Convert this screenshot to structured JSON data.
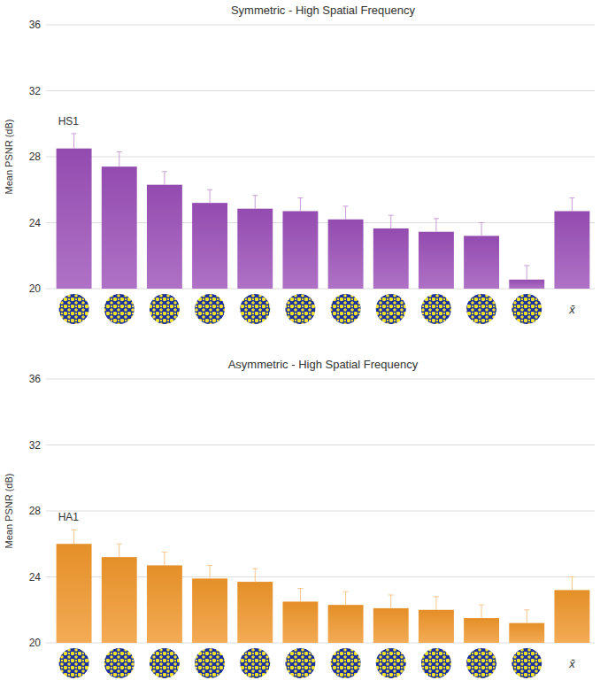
{
  "chart_data": [
    {
      "type": "bar",
      "title": "Symmetric - High Spatial Frequency",
      "y_label": "Mean PSNR (dB)",
      "annotation": "HS1",
      "categories": [
        null,
        null,
        null,
        null,
        null,
        null,
        null,
        null,
        null,
        null,
        null,
        "x̄"
      ],
      "values": [
        28.5,
        27.4,
        26.3,
        25.2,
        24.85,
        24.7,
        24.2,
        23.65,
        23.45,
        23.2,
        20.55,
        24.7
      ],
      "errors": [
        0.9,
        0.9,
        0.8,
        0.8,
        0.8,
        0.8,
        0.8,
        0.8,
        0.8,
        0.8,
        0.85,
        0.8
      ],
      "color": "#9b4fb8",
      "ylim": [
        20,
        36
      ],
      "yticks": [
        20,
        24,
        28,
        32,
        36
      ],
      "grid": true
    },
    {
      "type": "bar",
      "title": "Asymmetric - High Spatial Frequency",
      "y_label": "Mean PSNR (dB)",
      "annotation": "HA1",
      "categories": [
        null,
        null,
        null,
        null,
        null,
        null,
        null,
        null,
        null,
        null,
        null,
        "x̄"
      ],
      "values": [
        26.0,
        25.2,
        24.7,
        23.9,
        23.7,
        22.5,
        22.3,
        22.1,
        22.0,
        21.5,
        21.2,
        23.2
      ],
      "errors": [
        0.85,
        0.8,
        0.8,
        0.8,
        0.8,
        0.8,
        0.8,
        0.8,
        0.8,
        0.8,
        0.8,
        0.8
      ],
      "color": "#f0962a",
      "ylim": [
        20,
        36
      ],
      "yticks": [
        20,
        24,
        28,
        32,
        36
      ],
      "grid": true
    }
  ]
}
